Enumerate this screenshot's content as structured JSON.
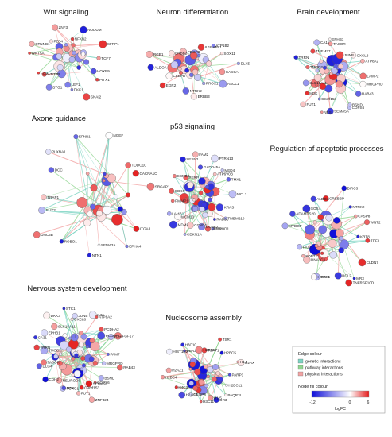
{
  "panels": [
    {
      "title": "Wnt signaling",
      "labels": [
        "HOXB9",
        "PITX1",
        "SNAI2",
        "DKK1",
        "LEF1",
        "BTG1",
        "WNT7B",
        "FZD7",
        "WNT5A",
        "CTNNB1",
        "FZD4",
        "ZNF3",
        "NFKB2",
        "NODUM",
        "SFRP1",
        "TCF7"
      ]
    },
    {
      "title": "Neuron differentiation",
      "labels": [
        "CASCA",
        "ASCL1",
        "PROX1",
        "ERBB3",
        "NTRK2",
        "EGR2",
        "CEBPB",
        "ALDOA",
        "RGB1",
        "ERBB2",
        "PDGFB",
        "IL1RAPL1",
        "ATP1B2",
        "SOX11",
        "DLX5"
      ]
    },
    {
      "title": "Brain development",
      "labels": [
        "MRGPRD",
        "RAB43",
        "BSND",
        "COPS6",
        "SEMA5A",
        "NES",
        "C9orf153",
        "FUT1",
        "MDK",
        "SLC16A11",
        "TMOD2",
        "TRRN",
        "TMEM27",
        "CA11",
        "EPHB1",
        "TASOR",
        "JUNB",
        "CXCL8",
        "ATP8A2",
        "LAMP2"
      ]
    },
    {
      "title": "Axone guidance",
      "labels": [
        "LAMB1",
        "ITGA3",
        "EPHA4",
        "SEMA3A",
        "NTN1",
        "ROBO1",
        "UNC5B",
        "SLIT2",
        "TRAP1",
        "DCC",
        "PLXNA1",
        "EFNB1",
        "NGEF",
        "TODO10",
        "CACNA1C",
        "SRGAP1"
      ]
    },
    {
      "title": "p53 signaling",
      "labels": [
        "KRAS",
        "TMEM219",
        "RAD51",
        "ZBP1",
        "NEUROD1",
        "CCNE2",
        "CCND1",
        "CDKN1A",
        "MDM2",
        "MCM10",
        "PMAIP1",
        "CDK6",
        "CCND3",
        "PERP",
        "SESN2",
        "FAM2",
        "GADD45A",
        "PTRN13",
        "ATP6V0B",
        "MED4",
        "TMX1",
        "MCL1"
      ]
    },
    {
      "title": "Regulation of apoptotic processes",
      "labels": [
        "TDF1",
        "CLDN7",
        "MR3",
        "TNFRSF10D",
        "BCL2",
        "TP63",
        "HOXA5",
        "DNAJC3",
        "SOBT1",
        "PAX7",
        "MYDGF",
        "ADAMTS20",
        "SOX4",
        "ALDOA",
        "CREBBP",
        "BIRC3",
        "NTRK2",
        "CASP8",
        "WNT2",
        "KRT8"
      ]
    },
    {
      "title": "Nervous system development",
      "labels": [
        "MRGPRD",
        "RAB43",
        "BSND",
        "COPS6",
        "SEMA5A",
        "ZNF324",
        "C9orf153",
        "FUT1",
        "FOXG1",
        "MDK",
        "NEUROD6",
        "CDH2",
        "DLG4",
        "TASOR",
        "TMOD2",
        "TRRN",
        "CA11",
        "EPHB1",
        "SLC16A11",
        "DKK3",
        "STC1",
        "JUNB",
        "CXCL8",
        "IL31",
        "ATP8A2",
        "PCDHA2",
        "PCDHAC1",
        "GAL",
        "FGF17",
        "FAM7"
      ]
    },
    {
      "title": "Nucleosome assembly",
      "labels": [
        "PARP3",
        "H2BC11",
        "PAQR3L",
        "DR3",
        "H1-5",
        "H3C11",
        "CENPA",
        "H2AC6",
        "H4C3",
        "H2BC4",
        "H2AZ1",
        "HIST1H2",
        "UBR2",
        "H3C10",
        "H2BC17",
        "TSPY1",
        "TSR1",
        "H2BC5",
        "H1-4",
        "H2AX"
      ]
    }
  ],
  "legend": {
    "edge_title": "Edge colour",
    "edge_items": [
      {
        "label": "genetic interactions",
        "color": "#7bd3c2"
      },
      {
        "label": "pathway interactions",
        "color": "#8fd48f"
      },
      {
        "label": "physical interactions",
        "color": "#f2a3a3"
      }
    ],
    "fill_title": "Node fill colour",
    "ticks": [
      "-12",
      "0",
      "6"
    ],
    "axis_label": "logFC",
    "colors": {
      "low": "#0d0dd9",
      "mid": "#ffffff",
      "high": "#e51b1b"
    }
  }
}
